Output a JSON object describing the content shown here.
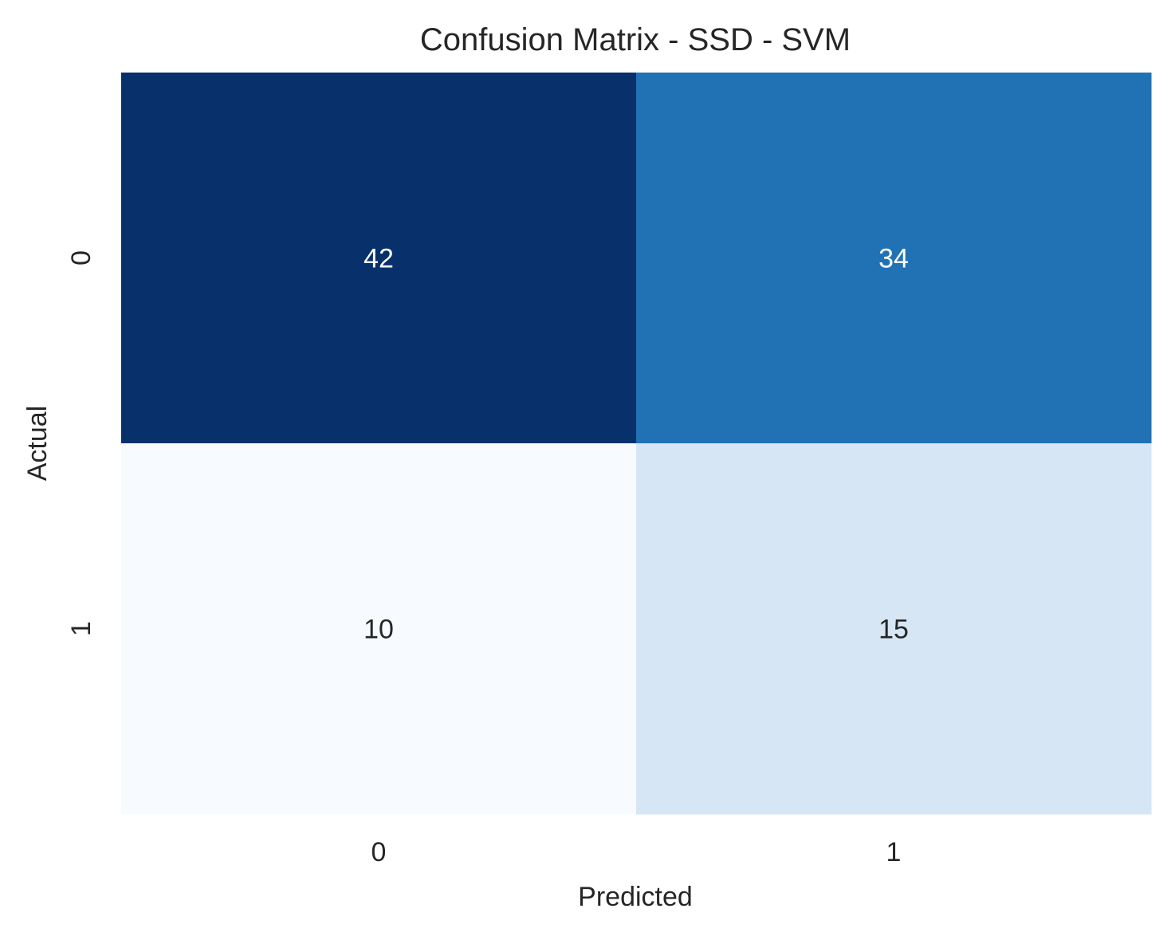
{
  "chart_data": {
    "type": "heatmap",
    "title": "Confusion Matrix - SSD - SVM",
    "xlabel": "Predicted",
    "ylabel": "Actual",
    "x_categories": [
      "0",
      "1"
    ],
    "y_categories": [
      "0",
      "1"
    ],
    "values": [
      [
        42,
        34
      ],
      [
        10,
        15
      ]
    ],
    "colormap": "Blues",
    "colorbar": false,
    "value_range": [
      10,
      42
    ],
    "colors": {
      "cell_0_0": "#08306b",
      "cell_0_1": "#2171b5",
      "cell_1_0": "#f7fbff",
      "cell_1_1": "#d6e6f5",
      "text_dark": "#262626",
      "text_light": "#ffffff"
    }
  }
}
